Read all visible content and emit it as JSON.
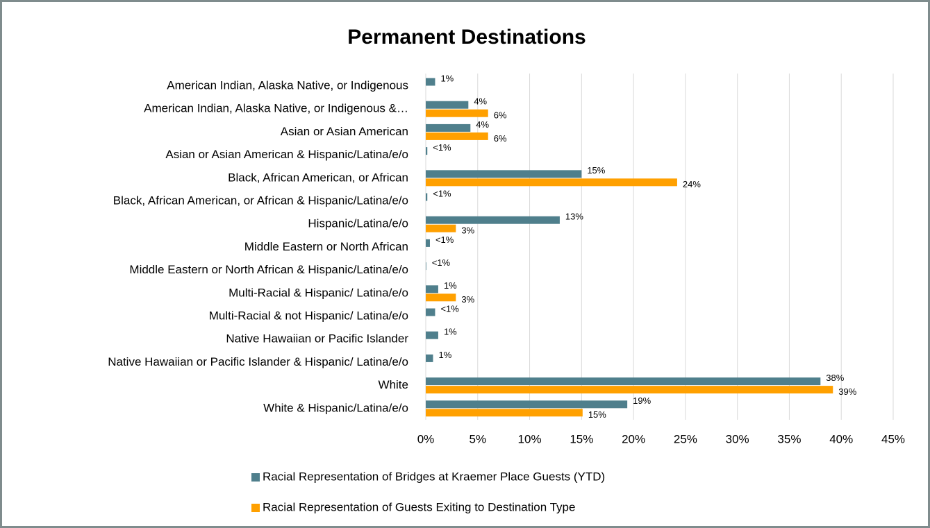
{
  "chart_data": {
    "type": "bar",
    "orientation": "horizontal",
    "title": "Permanent Destinations",
    "categories": [
      "American Indian, Alaska Native, or Indigenous",
      "American Indian, Alaska Native, or Indigenous &…",
      "Asian or Asian American",
      "Asian or Asian American & Hispanic/Latina/e/o",
      "Black, African American, or African",
      "Black, African American, or African & Hispanic/Latina/e/o",
      "Hispanic/Latina/e/o",
      "Middle Eastern or North African",
      "Middle Eastern or North African & Hispanic/Latina/e/o",
      "Multi-Racial & Hispanic/ Latina/e/o",
      "Multi-Racial & not Hispanic/ Latina/e/o",
      "Native Hawaiian or Pacific Islander",
      "Native Hawaiian or Pacific Islander & Hispanic/ Latina/e/o",
      "White",
      "White & Hispanic/Latina/e/o"
    ],
    "series": [
      {
        "name": "Racial Representation of Bridges at Kraemer Place Guests (YTD)",
        "color": "#4f7f8c",
        "values": [
          0.9,
          4.1,
          4.3,
          0.15,
          15.0,
          0.15,
          12.9,
          0.4,
          0.05,
          1.2,
          0.9,
          1.2,
          0.7,
          38.0,
          19.4
        ],
        "value_labels": [
          "1%",
          "4%",
          "4%",
          "<1%",
          "15%",
          "<1%",
          "13%",
          "<1%",
          "<1%",
          "1%",
          "<1%",
          "1%",
          "1%",
          "38%",
          "19%"
        ]
      },
      {
        "name": "Racial Representation of Guests Exiting to Destination Type",
        "color": "#ffa000",
        "values": [
          null,
          6.0,
          6.0,
          null,
          24.2,
          null,
          2.9,
          null,
          null,
          2.9,
          null,
          null,
          null,
          39.2,
          15.1
        ],
        "value_labels": [
          null,
          "6%",
          "6%",
          null,
          "24%",
          null,
          "3%",
          null,
          null,
          "3%",
          null,
          null,
          null,
          "39%",
          "15%"
        ]
      }
    ],
    "xlim": [
      0,
      45
    ],
    "xticks": [
      {
        "value": 0,
        "label": "0%"
      },
      {
        "value": 5,
        "label": "5%"
      },
      {
        "value": 10,
        "label": "10%"
      },
      {
        "value": 15,
        "label": "15%"
      },
      {
        "value": 20,
        "label": "20%"
      },
      {
        "value": 25,
        "label": "25%"
      },
      {
        "value": 30,
        "label": "30%"
      },
      {
        "value": 35,
        "label": "35%"
      },
      {
        "value": 40,
        "label": "40%"
      },
      {
        "value": 45,
        "label": "45%"
      }
    ],
    "grid": true,
    "legend": "bottom"
  }
}
